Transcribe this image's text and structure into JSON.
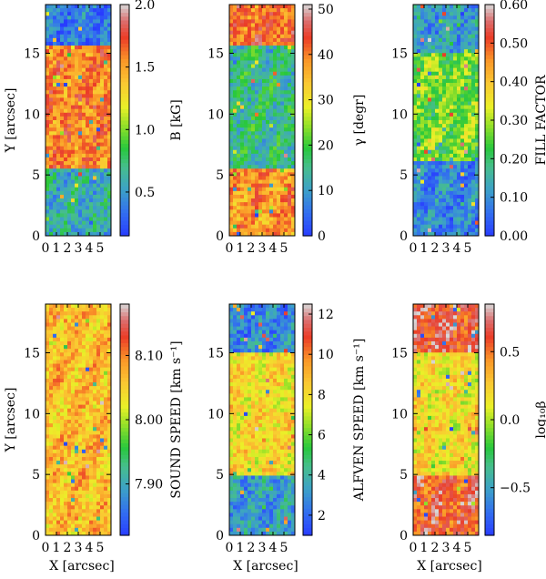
{
  "chart_data": [
    {
      "type": "heatmap",
      "panel": "B",
      "xlabel": "",
      "ylabel": "Y [arcsec]",
      "colorbar_label": "B [kG]",
      "colorbar_ticks": [
        {
          "value": 0.5,
          "label": "0.5"
        },
        {
          "value": 1.0,
          "label": "1.0"
        },
        {
          "value": 1.5,
          "label": "1.5"
        },
        {
          "value": 2.0,
          "label": "2.0"
        }
      ],
      "vmin": 0.15,
      "vmax": 2.0,
      "zones": [
        {
          "y0": 0,
          "y1": 5.5,
          "level": 0.25
        },
        {
          "y0": 5.5,
          "y1": 15.5,
          "level": 0.78
        },
        {
          "y0": 15.5,
          "y1": 19,
          "level": 0.12
        }
      ]
    },
    {
      "type": "heatmap",
      "panel": "gamma",
      "xlabel": "",
      "ylabel": "",
      "colorbar_label": "γ [degr]",
      "colorbar_ticks": [
        {
          "value": 0,
          "label": "0"
        },
        {
          "value": 10,
          "label": "10"
        },
        {
          "value": 20,
          "label": "20"
        },
        {
          "value": 30,
          "label": "30"
        },
        {
          "value": 40,
          "label": "40"
        },
        {
          "value": 50,
          "label": "50"
        }
      ],
      "vmin": 0,
      "vmax": 51,
      "zones": [
        {
          "y0": 0,
          "y1": 5.5,
          "level": 0.75
        },
        {
          "y0": 5.5,
          "y1": 15.5,
          "level": 0.3
        },
        {
          "y0": 15.5,
          "y1": 19,
          "level": 0.8
        }
      ]
    },
    {
      "type": "heatmap",
      "panel": "fill",
      "xlabel": "",
      "ylabel": "",
      "colorbar_label": "FILL FACTOR",
      "colorbar_ticks": [
        {
          "value": 0.0,
          "label": "0.00"
        },
        {
          "value": 0.1,
          "label": "0.10"
        },
        {
          "value": 0.2,
          "label": "0.20"
        },
        {
          "value": 0.3,
          "label": "0.30"
        },
        {
          "value": 0.4,
          "label": "0.40"
        },
        {
          "value": 0.5,
          "label": "0.50"
        },
        {
          "value": 0.6,
          "label": "0.60"
        }
      ],
      "vmin": 0.0,
      "vmax": 0.6,
      "zones": [
        {
          "y0": 0,
          "y1": 6,
          "level": 0.15
        },
        {
          "y0": 6,
          "y1": 15,
          "level": 0.45
        },
        {
          "y0": 15,
          "y1": 19,
          "level": 0.2
        }
      ]
    },
    {
      "type": "heatmap",
      "panel": "sound",
      "xlabel": "X [arcsec]",
      "ylabel": "Y [arcsec]",
      "colorbar_label": "SOUND SPEED [km s⁻¹]",
      "colorbar_ticks": [
        {
          "value": 7.9,
          "label": "7.90"
        },
        {
          "value": 8.0,
          "label": "8.00"
        },
        {
          "value": 8.1,
          "label": "8.10"
        }
      ],
      "vmin": 7.82,
      "vmax": 8.18,
      "zones": [
        {
          "y0": 0,
          "y1": 19,
          "level": 0.68
        }
      ]
    },
    {
      "type": "heatmap",
      "panel": "alfven",
      "xlabel": "X [arcsec]",
      "ylabel": "",
      "colorbar_label": "ALFVEN SPEED [km s⁻¹]",
      "colorbar_ticks": [
        {
          "value": 2,
          "label": "2"
        },
        {
          "value": 4,
          "label": "4"
        },
        {
          "value": 6,
          "label": "6"
        },
        {
          "value": 8,
          "label": "8"
        },
        {
          "value": 10,
          "label": "10"
        },
        {
          "value": 12,
          "label": "12"
        }
      ],
      "vmin": 1,
      "vmax": 12.5,
      "zones": [
        {
          "y0": 0,
          "y1": 5,
          "level": 0.2
        },
        {
          "y0": 5,
          "y1": 15,
          "level": 0.62
        },
        {
          "y0": 15,
          "y1": 19,
          "level": 0.15
        }
      ]
    },
    {
      "type": "heatmap",
      "panel": "beta",
      "xlabel": "X [arcsec]",
      "ylabel": "",
      "colorbar_label": "log₁₀β",
      "colorbar_ticks": [
        {
          "value": -0.5,
          "label": "−0.5"
        },
        {
          "value": 0.0,
          "label": "0.0"
        },
        {
          "value": 0.5,
          "label": "0.5"
        }
      ],
      "vmin": -0.85,
      "vmax": 0.85,
      "zones": [
        {
          "y0": 0,
          "y1": 5,
          "level": 0.85
        },
        {
          "y0": 5,
          "y1": 15,
          "level": 0.6
        },
        {
          "y0": 15,
          "y1": 19,
          "level": 0.88
        }
      ]
    }
  ],
  "axes": {
    "x_range": [
      0,
      6
    ],
    "y_range": [
      0,
      19
    ],
    "x_ticks": [
      "0",
      "1",
      "2",
      "3",
      "4",
      "5"
    ],
    "y_ticks": [
      "0",
      "5",
      "10",
      "15"
    ]
  }
}
